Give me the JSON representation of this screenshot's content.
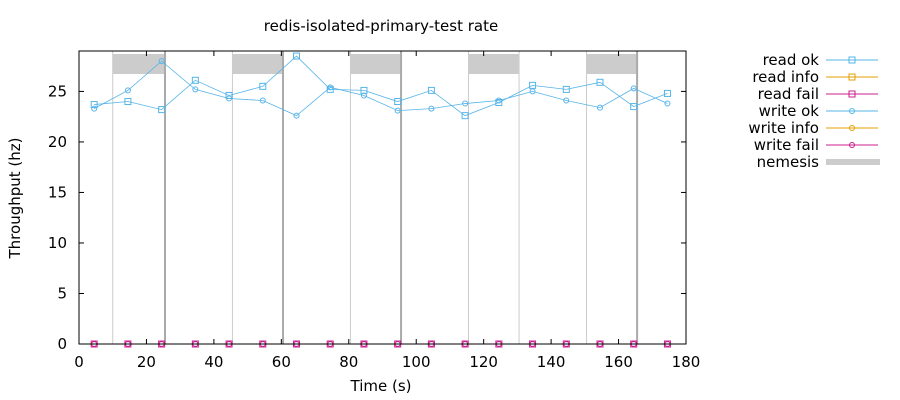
{
  "chart_data": {
    "type": "line",
    "title": "redis-isolated-primary-test rate",
    "xlabel": "Time (s)",
    "ylabel": "Throughput (hz)",
    "xlim": [
      0,
      180
    ],
    "ylim": [
      0,
      29
    ],
    "xticks": [
      0,
      20,
      40,
      60,
      80,
      100,
      120,
      140,
      160,
      180
    ],
    "yticks": [
      0,
      5,
      10,
      15,
      20,
      25
    ],
    "legend_position": "outside-right",
    "series": [
      {
        "name": "read ok",
        "color": "#56b4e9",
        "marker": "square",
        "x": [
          4.5,
          14.5,
          24.5,
          34.5,
          44.5,
          54.5,
          64.5,
          74.5,
          84.5,
          94.5,
          104.5,
          114.5,
          124.5,
          134.5,
          144.5,
          154.5,
          164.5,
          174.5
        ],
        "y": [
          23.7,
          24.0,
          23.2,
          26.1,
          24.6,
          25.5,
          28.5,
          25.2,
          25.1,
          24.0,
          25.1,
          22.6,
          23.9,
          25.6,
          25.2,
          25.9,
          23.5,
          24.8
        ]
      },
      {
        "name": "read info",
        "color": "#e69f00",
        "marker": "square",
        "x": [],
        "y": []
      },
      {
        "name": "read fail",
        "color": "#cc1c8c",
        "marker": "square",
        "x": [
          4.5,
          14.5,
          24.5,
          34.5,
          44.5,
          54.5,
          64.5,
          74.5,
          84.5,
          94.5,
          104.5,
          114.5,
          124.5,
          134.5,
          144.5,
          154.5,
          164.5,
          174.5
        ],
        "y": [
          0,
          0,
          0,
          0,
          0,
          0,
          0,
          0,
          0,
          0,
          0,
          0,
          0,
          0,
          0,
          0,
          0,
          0
        ]
      },
      {
        "name": "write ok",
        "color": "#56b4e9",
        "marker": "circle",
        "x": [
          4.5,
          14.5,
          24.5,
          34.5,
          44.5,
          54.5,
          64.5,
          74.5,
          84.5,
          94.5,
          104.5,
          114.5,
          124.5,
          134.5,
          144.5,
          154.5,
          164.5,
          174.5
        ],
        "y": [
          23.3,
          25.1,
          28.0,
          25.2,
          24.3,
          24.1,
          22.6,
          25.4,
          24.6,
          23.1,
          23.3,
          23.8,
          24.1,
          25.0,
          24.1,
          23.4,
          25.3,
          23.8
        ]
      },
      {
        "name": "write info",
        "color": "#e69f00",
        "marker": "circle",
        "x": [],
        "y": []
      },
      {
        "name": "write fail",
        "color": "#cc1c8c",
        "marker": "circle",
        "x": [
          4.5,
          14.5,
          24.5,
          34.5,
          44.5,
          54.5,
          64.5,
          74.5,
          84.5,
          94.5,
          104.5,
          114.5,
          124.5,
          134.5,
          144.5,
          154.5,
          164.5,
          174.5
        ],
        "y": [
          0,
          0,
          0,
          0,
          0,
          0,
          0,
          0,
          0,
          0,
          0,
          0,
          0,
          0,
          0,
          0,
          0,
          0
        ]
      }
    ],
    "nemesis": {
      "name": "nemesis",
      "color": "#cccccc",
      "intervals": [
        [
          10,
          25.5
        ],
        [
          45.5,
          60.5
        ],
        [
          80.5,
          95.5
        ],
        [
          115.5,
          130.5
        ],
        [
          150.5,
          165.5
        ]
      ],
      "end_markers": [
        25.5,
        60.5,
        95.5,
        165.5
      ]
    }
  }
}
